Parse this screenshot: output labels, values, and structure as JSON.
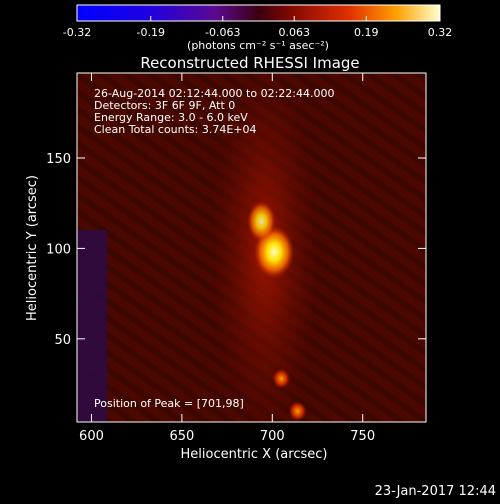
{
  "chart_data": {
    "type": "heatmap",
    "title": "Reconstructed RHESSI Image",
    "xlabel": "Heliocentric X (arcsec)",
    "ylabel": "Heliocentric Y (arcsec)",
    "xlim": [
      592,
      785
    ],
    "ylim": [
      4,
      197
    ],
    "x_ticks": [
      600,
      650,
      700,
      750
    ],
    "y_ticks": [
      50,
      100,
      150
    ],
    "colorbar": {
      "ticks": [
        -0.32,
        -0.19,
        -0.063,
        0.063,
        0.19,
        0.32
      ],
      "tick_labels": [
        "-0.32",
        "-0.19",
        "-0.063",
        "0.063",
        "0.19",
        "0.32"
      ],
      "range": [
        -0.32,
        0.32
      ],
      "units": "(photons cm⁻² s⁻¹ asec⁻²)"
    },
    "info_lines": [
      "26-Aug-2014 02:12:44.000 to 02:22:44.000",
      "Detectors: 3F 6F 9F, Att 0",
      "Energy Range: 3.0 - 6.0 keV",
      "Clean     Total counts: 3.74E+04"
    ],
    "peak_label": "Position of Peak = [701,98]",
    "peak_position": [
      701,
      98
    ],
    "features": [
      {
        "x": 701,
        "y": 98,
        "value": 0.32
      },
      {
        "x": 694,
        "y": 115,
        "value": 0.22
      },
      {
        "x": 705,
        "y": 28,
        "value": 0.12
      },
      {
        "x": 714,
        "y": 10,
        "value": 0.12
      }
    ],
    "grid": false,
    "legend": "none"
  },
  "timestamp": "23-Jan-2017 12:44"
}
